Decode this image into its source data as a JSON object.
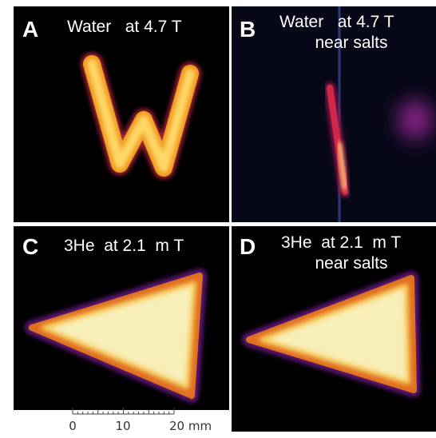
{
  "panels": [
    {
      "letter": "A",
      "caption": [
        "Water   at 4.7 T"
      ]
    },
    {
      "letter": "B",
      "caption": [
        "Water   at 4.7 T",
        "near salts"
      ]
    },
    {
      "letter": "C",
      "caption": [
        "3He  at 2.1  m T"
      ]
    },
    {
      "letter": "D",
      "caption": [
        "3He  at 2.1  m T",
        "near salts"
      ]
    }
  ],
  "scale_bar": {
    "labels": [
      "0",
      "10",
      "20 mm"
    ]
  }
}
